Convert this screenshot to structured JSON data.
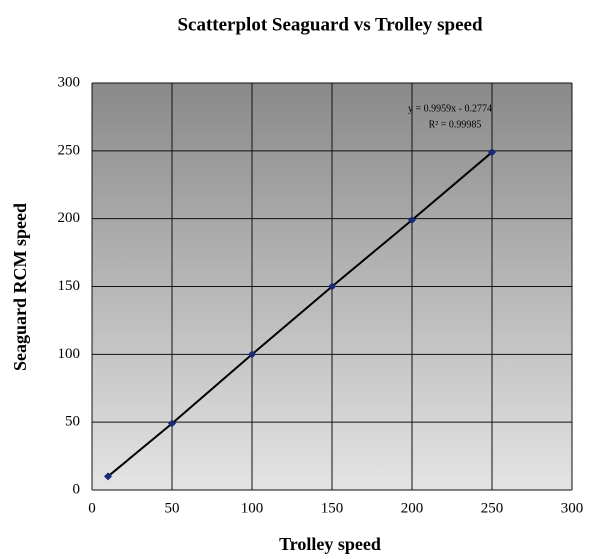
{
  "chart_data": {
    "type": "scatter",
    "title": "Scatterplot Seaguard vs Trolley speed",
    "x_label": "Trolley  speed",
    "y_label": "Seaguard RCM speed",
    "annotations": [
      "y = 0.9959x - 0.2774",
      "R² = 0.99985"
    ],
    "x": [
      10,
      50,
      100,
      150,
      200,
      250
    ],
    "values": [
      10,
      49,
      100,
      150,
      199,
      249
    ],
    "color": "#1a2a7a",
    "xlim": [
      0,
      300
    ],
    "xticks": [
      0,
      50,
      100,
      150,
      200,
      250,
      300
    ],
    "ylim": [
      0,
      300
    ],
    "yticks": [
      0,
      50,
      100,
      150,
      200,
      250,
      300
    ],
    "grid": true
  }
}
